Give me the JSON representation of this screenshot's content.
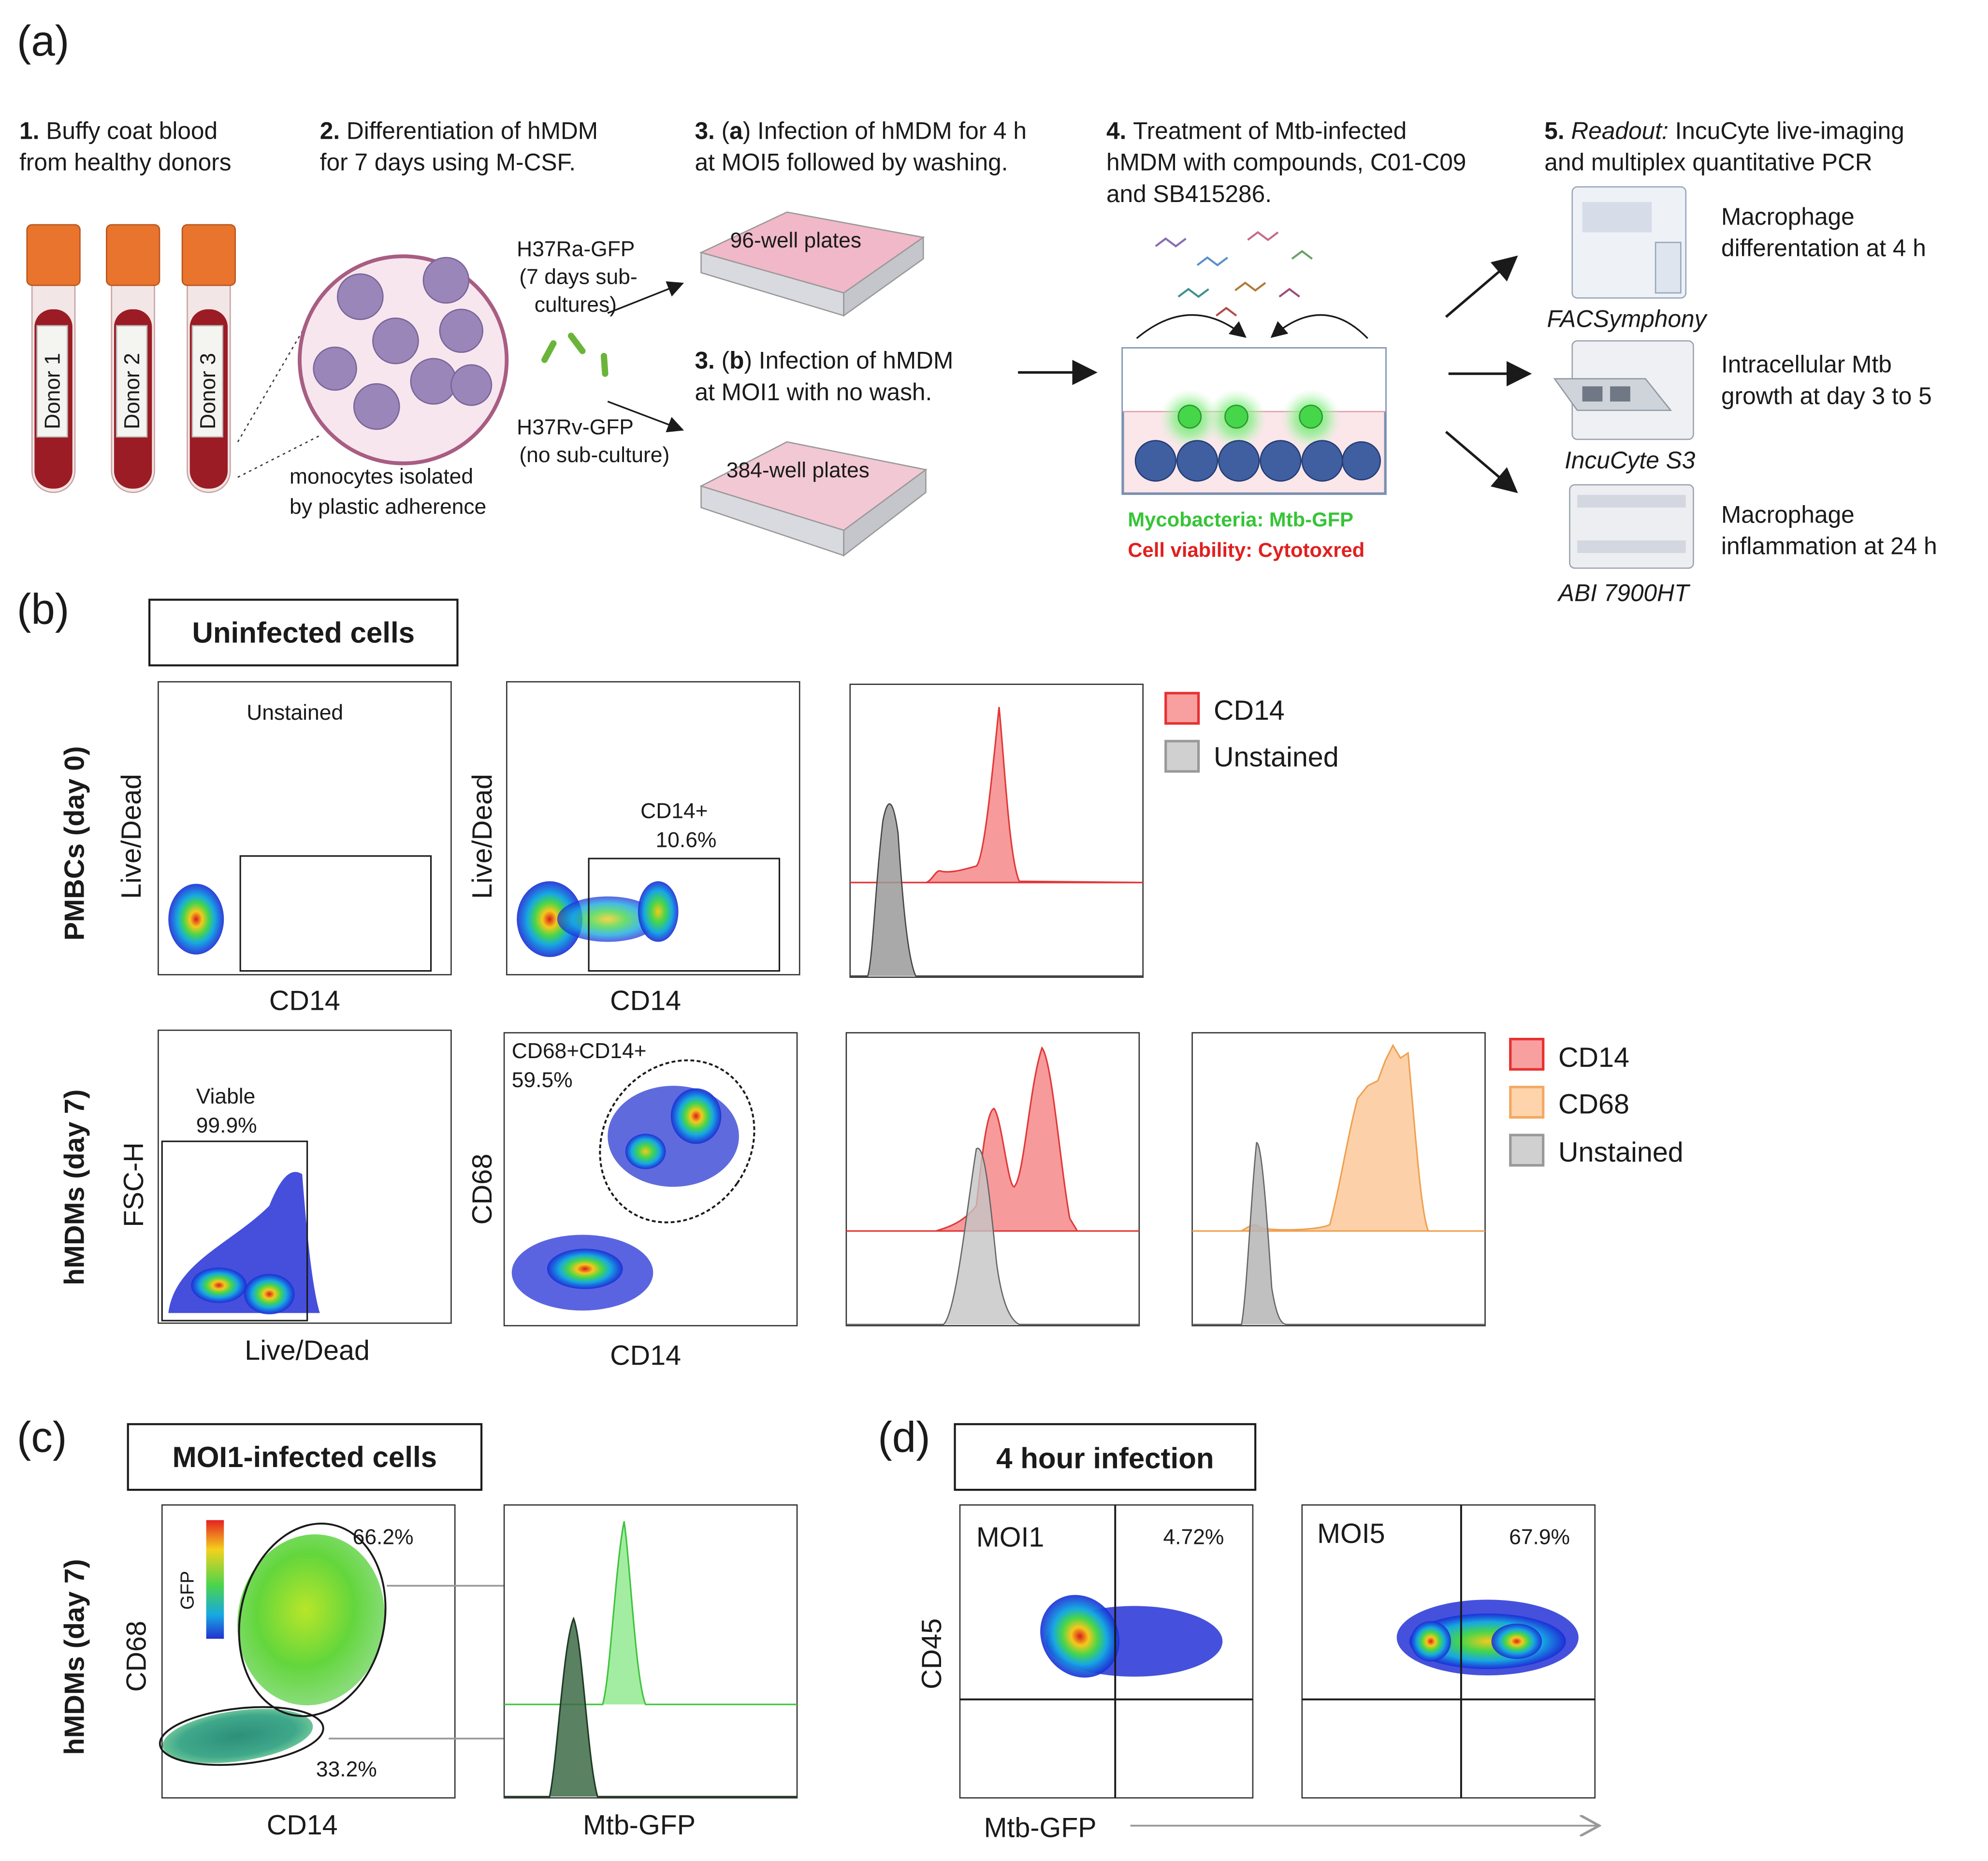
{
  "panel_a": {
    "label": "(a)",
    "step1": {
      "num": "1.",
      "line1": "Buffy coat blood",
      "line2": "from healthy donors"
    },
    "donors": [
      "Donor 1",
      "Donor 2",
      "Donor 3"
    ],
    "step2": {
      "num": "2.",
      "line1": "Differentiation of hMDM",
      "line2": "for 7 days using M-CSF.",
      "caption1": "monocytes isolated",
      "caption2": "by plastic adherence"
    },
    "strains": {
      "ra1": "H37Ra-GFP",
      "ra2": "(7 days sub-",
      "ra3": "cultures)",
      "rv1": "H37Rv-GFP",
      "rv2": "(no sub-culture)"
    },
    "step3a": {
      "num": "3.",
      "open": " (",
      "letter": "a",
      "rest": ") Infection of hMDM for 4 h",
      "line2": "at MOI5 followed by washing."
    },
    "step3b": {
      "num": "3.",
      "open": " (",
      "letter": "b",
      "rest": ") Infection of hMDM",
      "line2": "at MOI1 with no wash."
    },
    "plate96": "96-well plates",
    "plate384": "384-well plates",
    "step4": {
      "num": "4.",
      "line1": "Treatment of Mtb-infected",
      "line2": "hMDM with compounds, C01-C09",
      "line3": "and SB415286."
    },
    "well_legend": {
      "green": "Mycobacteria: Mtb-GFP",
      "red": "Cell viability: Cytotoxred"
    },
    "step5": {
      "num": "5.",
      "readout": "Readout:",
      "line1": " IncuCyte live-imaging",
      "line2": "and multiplex quantitative PCR"
    },
    "instruments": [
      {
        "name": "FACSymphony",
        "line1": "Macrophage",
        "line2": "differentation at 4 h"
      },
      {
        "name": "IncuCyte S3",
        "line1": "Intracellular Mtb",
        "line2": "growth at day 3 to 5"
      },
      {
        "name": "ABI 7900HT",
        "line1": "Macrophage",
        "line2": "inflammation at 24 h"
      }
    ],
    "colors": {
      "tube_cap": "#e8742e",
      "blood": "#9b1c24",
      "cell": "#9a86b8",
      "plate": "#e8a0b4"
    }
  },
  "panel_b": {
    "label": "(b)",
    "header": "Uninfected cells",
    "row1_label": "PMBCs (day 0)",
    "row2_label": "hMDMs (day 7)",
    "p1": {
      "gate": "Unstained",
      "ylabel": "Live/Dead",
      "xlabel": "CD14"
    },
    "p2": {
      "gate": "CD14+",
      "pct": "10.6%",
      "ylabel": "Live/Dead",
      "xlabel": "CD14"
    },
    "legend1": [
      "CD14",
      "Unstained"
    ],
    "p4": {
      "gate": "Viable",
      "pct": "99.9%",
      "ylabel": "FSC-H",
      "xlabel": "Live/Dead"
    },
    "p5": {
      "gate": "CD68+CD14+",
      "pct": "59.5%",
      "ylabel": "CD68",
      "xlabel": "CD14"
    },
    "legend2": [
      "CD14",
      "CD68",
      "Unstained"
    ],
    "colors": {
      "cd14": "#f4787a",
      "cd68": "#fcc99a",
      "unstained": "#b5b5b5"
    }
  },
  "panel_c": {
    "label": "(c)",
    "header": "MOI1-infected cells",
    "row_label": "hMDMs (day 7)",
    "pct_upper": "66.2%",
    "pct_lower": "33.2%",
    "ylabel": "CD68",
    "xlabel": "CD14",
    "scale_label": "GFP",
    "hist_xlabel": "Mtb-GFP",
    "colors": {
      "bright": "#7ce67a",
      "dark": "#3d6b46"
    }
  },
  "panel_d": {
    "label": "(d)",
    "header": "4 hour infection",
    "plots": [
      {
        "name": "MOI1",
        "pct": "4.72%"
      },
      {
        "name": "MOI5",
        "pct": "67.9%"
      }
    ],
    "ylabel": "CD45",
    "xlabel": "Mtb-GFP"
  }
}
